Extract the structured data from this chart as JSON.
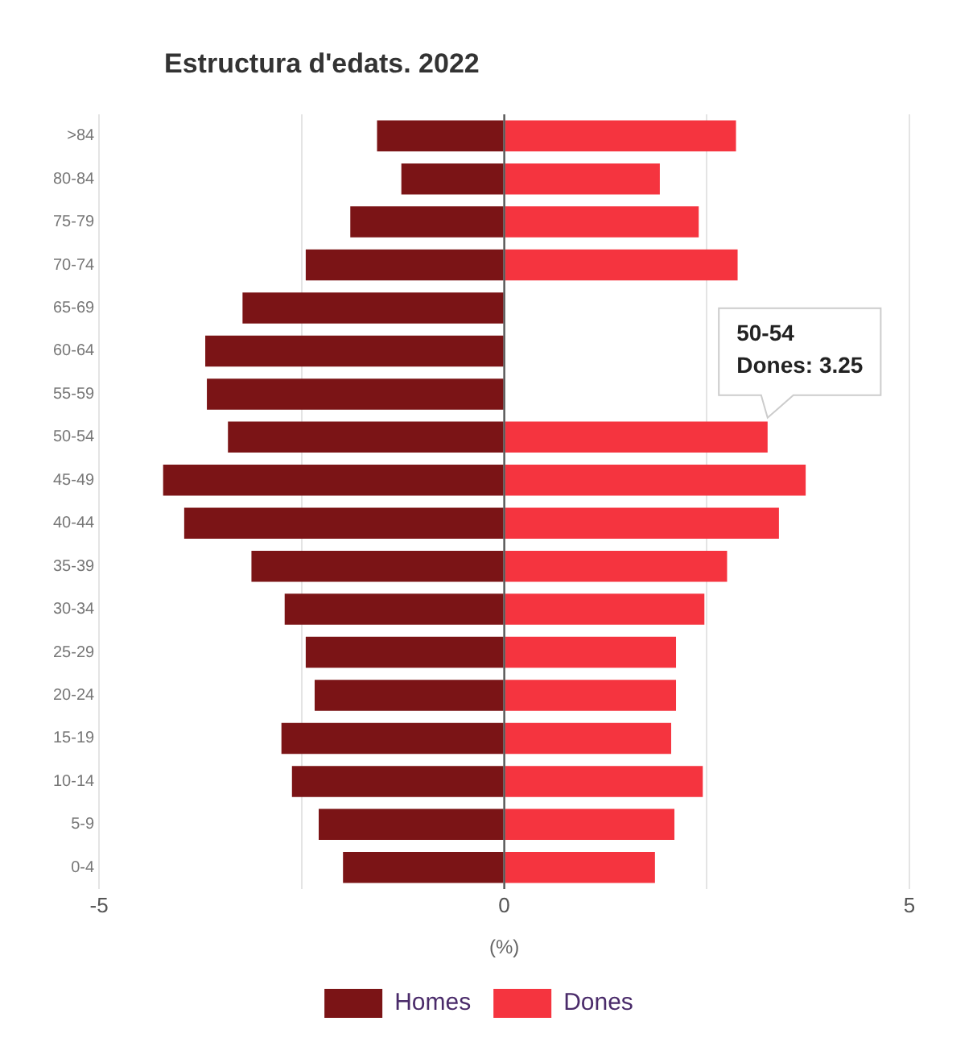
{
  "chart_data": {
    "type": "bar",
    "orientation": "horizontal",
    "stacked": true,
    "title": "Estructura d'edats. 2022",
    "xlabel": "(%)",
    "categories": [
      ">84",
      "80-84",
      "75-79",
      "70-74",
      "65-69",
      "60-64",
      "55-59",
      "50-54",
      "45-49",
      "40-44",
      "35-39",
      "30-34",
      "25-29",
      "20-24",
      "15-19",
      "10-14",
      "5-9",
      "0-4"
    ],
    "series": [
      {
        "name": "Homes",
        "color": "#7b1416",
        "values": [
          -1.57,
          -1.27,
          -1.9,
          -2.45,
          -3.23,
          -3.69,
          -3.67,
          -3.41,
          -4.21,
          -3.95,
          -3.12,
          -2.71,
          -2.45,
          -2.34,
          -2.75,
          -2.62,
          -2.29,
          -1.99
        ]
      },
      {
        "name": "Dones",
        "color": "#f5343f",
        "values": [
          2.86,
          1.92,
          2.4,
          2.88,
          null,
          null,
          null,
          3.25,
          3.72,
          3.39,
          2.75,
          2.47,
          2.12,
          2.12,
          2.06,
          2.45,
          2.1,
          1.86
        ]
      }
    ],
    "xlim": [
      -5,
      5
    ],
    "xticks": [
      -5,
      {
        "value": -2.5,
        "label": null
      },
      0,
      {
        "value": 2.5,
        "label": null
      },
      5
    ],
    "grid": "x",
    "legend": "bottom",
    "annotations": [
      {
        "text": "50-54\nDones: 3.25",
        "x": 3.25,
        "y": "50-54"
      }
    ]
  }
}
